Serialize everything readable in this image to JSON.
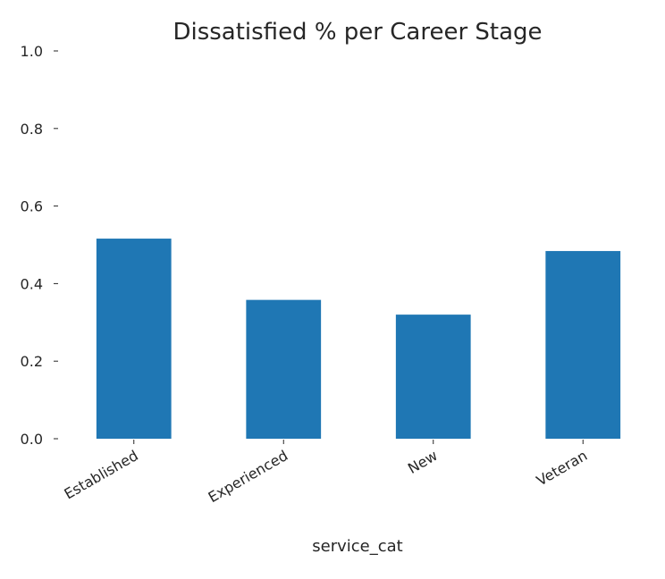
{
  "chart_data": {
    "type": "bar",
    "title": "Dissatisfied % per Career Stage",
    "xlabel": "service_cat",
    "ylabel": "",
    "categories": [
      "Established",
      "Experienced",
      "New",
      "Veteran"
    ],
    "values": [
      0.516,
      0.358,
      0.32,
      0.484
    ],
    "ylim": [
      0,
      1.0
    ],
    "yticks": [
      "0.0",
      "0.2",
      "0.4",
      "0.6",
      "0.8",
      "1.0"
    ],
    "grid": false,
    "legend": "none",
    "bar_color": "#1f77b4",
    "xtick_rotation": 30
  }
}
